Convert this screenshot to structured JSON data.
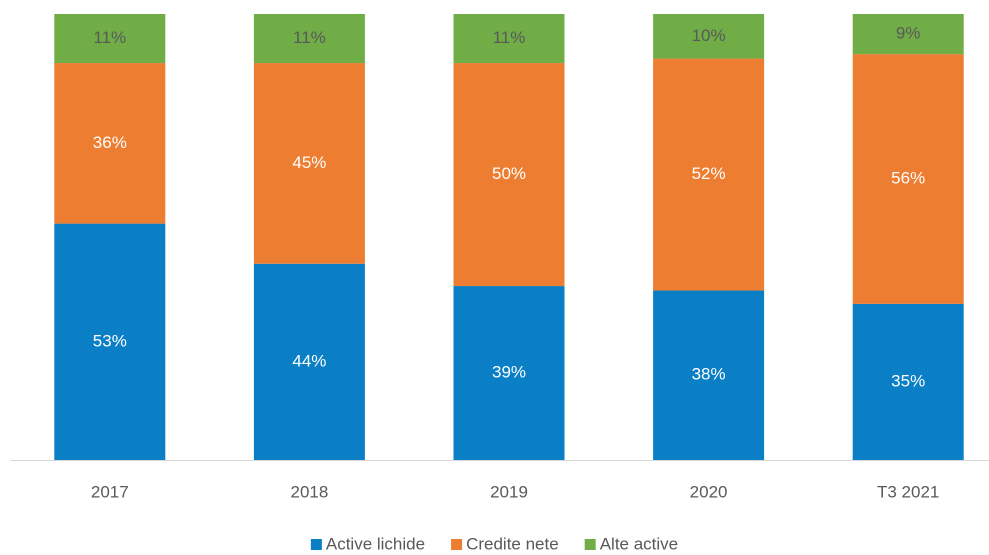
{
  "chart_data": {
    "type": "stacked_bar",
    "categories": [
      "2017",
      "2018",
      "2019",
      "2020",
      "T3 2021"
    ],
    "series": [
      {
        "name": "Active lichide",
        "color": "#0a7fc6",
        "values": [
          53,
          44,
          39,
          38,
          35
        ],
        "value_labels": [
          "53%",
          "44%",
          "39%",
          "38%",
          "35%"
        ]
      },
      {
        "name": "Credite nete",
        "color": "#ed7d31",
        "values": [
          36,
          45,
          50,
          52,
          56
        ],
        "value_labels": [
          "36%",
          "45%",
          "50%",
          "52%",
          "56%"
        ]
      },
      {
        "name": "Alte active",
        "color": "#70ad47",
        "values": [
          11,
          11,
          11,
          10,
          9
        ],
        "value_labels": [
          "11%",
          "11%",
          "11%",
          "10%",
          "9%"
        ]
      }
    ],
    "legend": "bottom"
  }
}
